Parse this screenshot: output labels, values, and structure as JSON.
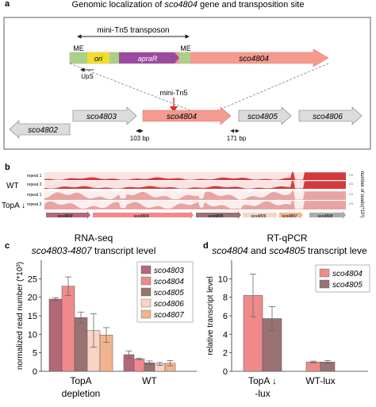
{
  "panel_a": {
    "letter": "a",
    "title_prefix": "Genomic localization of ",
    "title_gene": "sco4804",
    "title_suffix": " gene and transposition site",
    "transposon_label": "mini-Tn5 transposon",
    "me_left": "ME",
    "me_right": "ME",
    "ori": "ori",
    "apraR": "apraR",
    "construct_gene": "sco4804",
    "ups": "UpS",
    "insertion_label": "mini-Tn5",
    "genes": [
      "sco4803",
      "sco4804",
      "sco4805",
      "sco4806",
      "sco4802"
    ],
    "dist_left": "103 bp",
    "dist_right": "171 bp"
  },
  "panel_b": {
    "letter": "b",
    "wt": "WT",
    "topa": "TopA ↓",
    "repeat1": "repeat 1",
    "repeat2": "repeat 2",
    "axis_label": "number of reads(*10³)",
    "genes": [
      "sco4803",
      "sco4804",
      "sco4805",
      "sco4806",
      "sco4807",
      "sco4808"
    ]
  },
  "panel_c": {
    "letter": "c",
    "title_line1": "RNA-seq",
    "title_gene": "sco4803-4807",
    "title_suffix": " transcript level",
    "chart_data": {
      "type": "bar",
      "ylabel": "normalized read number (*10³)",
      "ylim": [
        0,
        30
      ],
      "yticks": [
        0,
        5,
        10,
        15,
        20,
        25
      ],
      "groups": [
        "TopA depletion",
        "WT"
      ],
      "group_lines": [
        [
          "TopA",
          "depletion"
        ],
        [
          "WT"
        ]
      ],
      "series": [
        {
          "name": "sco4803",
          "color": "#b5677a",
          "values": [
            19.5,
            4.5
          ],
          "errors": [
            0.4,
            1.0
          ]
        },
        {
          "name": "sco4804",
          "color": "#f08a8a",
          "values": [
            23.0,
            3.3
          ],
          "errors": [
            2.5,
            0.2
          ]
        },
        {
          "name": "sco4805",
          "color": "#9b7273",
          "values": [
            14.5,
            2.3
          ],
          "errors": [
            1.5,
            0.5
          ]
        },
        {
          "name": "sco4806",
          "color": "#f9d3c3",
          "values": [
            11.0,
            2.0
          ],
          "errors": [
            4.5,
            0.4
          ]
        },
        {
          "name": "sco4807",
          "color": "#f2b48e",
          "values": [
            9.8,
            2.2
          ],
          "errors": [
            2.0,
            0.7
          ]
        }
      ]
    }
  },
  "panel_d": {
    "letter": "d",
    "title_line1": "RT-qPCR",
    "title_gene1": "sco4804",
    "title_and": " and ",
    "title_gene2": "sco4805",
    "title_suffix": " transcript leve",
    "chart_data": {
      "type": "bar",
      "ylabel": "relative transcript level",
      "ylim": [
        0,
        12
      ],
      "yticks": [
        0,
        2,
        4,
        6,
        8,
        10
      ],
      "groups": [
        "TopA ↓ -lux",
        "WT-lux"
      ],
      "group_lines": [
        [
          "TopA ↓",
          "-lux"
        ],
        [
          "WT-lux"
        ]
      ],
      "series": [
        {
          "name": "sco4804",
          "color": "#f08a8a",
          "values": [
            8.2,
            1.0
          ],
          "errors": [
            2.3,
            0.1
          ]
        },
        {
          "name": "sco4805",
          "color": "#9b7273",
          "values": [
            5.7,
            1.0
          ],
          "errors": [
            1.3,
            0.15
          ]
        }
      ]
    }
  }
}
